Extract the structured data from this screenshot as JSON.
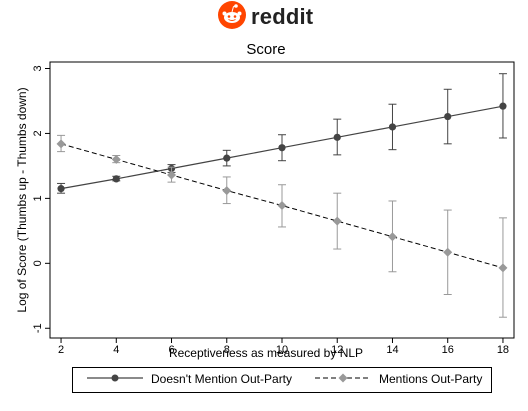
{
  "logo": {
    "text": "reddit",
    "brand_color": "#ff4500"
  },
  "chart_data": {
    "type": "line",
    "title": "Score",
    "xlabel": "Receptiveness as measured by NLP",
    "ylabel": "Log of Score (Thumbs up - Thumbs down)",
    "x": [
      2,
      4,
      6,
      8,
      10,
      12,
      14,
      16,
      18
    ],
    "xlim": [
      1.6,
      18.4
    ],
    "ylim": [
      -1.15,
      3.1
    ],
    "xticks": [
      "2",
      "4",
      "6",
      "8",
      "10",
      "12",
      "14",
      "16",
      "18"
    ],
    "yticks": [
      "-1",
      "0",
      "1",
      "2",
      "3"
    ],
    "grid": false,
    "legend_position": "bottom",
    "series": [
      {
        "name": "Doesn't Mention Out-Party",
        "values": [
          1.15,
          1.3,
          1.46,
          1.62,
          1.78,
          1.94,
          2.1,
          2.26,
          2.42
        ],
        "ci_low": [
          1.08,
          1.27,
          1.4,
          1.5,
          1.58,
          1.67,
          1.75,
          1.84,
          1.93
        ],
        "ci_high": [
          1.23,
          1.34,
          1.52,
          1.74,
          1.98,
          2.22,
          2.45,
          2.68,
          2.92
        ],
        "style": "solid",
        "marker": "circle",
        "color": "#444444"
      },
      {
        "name": "Mentions Out-Party",
        "values": [
          1.84,
          1.6,
          1.36,
          1.12,
          0.89,
          0.65,
          0.41,
          0.17,
          -0.07
        ],
        "ci_low": [
          1.72,
          1.55,
          1.25,
          0.92,
          0.56,
          0.22,
          -0.13,
          -0.48,
          -0.83
        ],
        "ci_high": [
          1.97,
          1.66,
          1.48,
          1.33,
          1.21,
          1.08,
          0.96,
          0.82,
          0.7
        ],
        "style": "dashed",
        "marker": "diamond",
        "color": "#999999"
      }
    ]
  }
}
